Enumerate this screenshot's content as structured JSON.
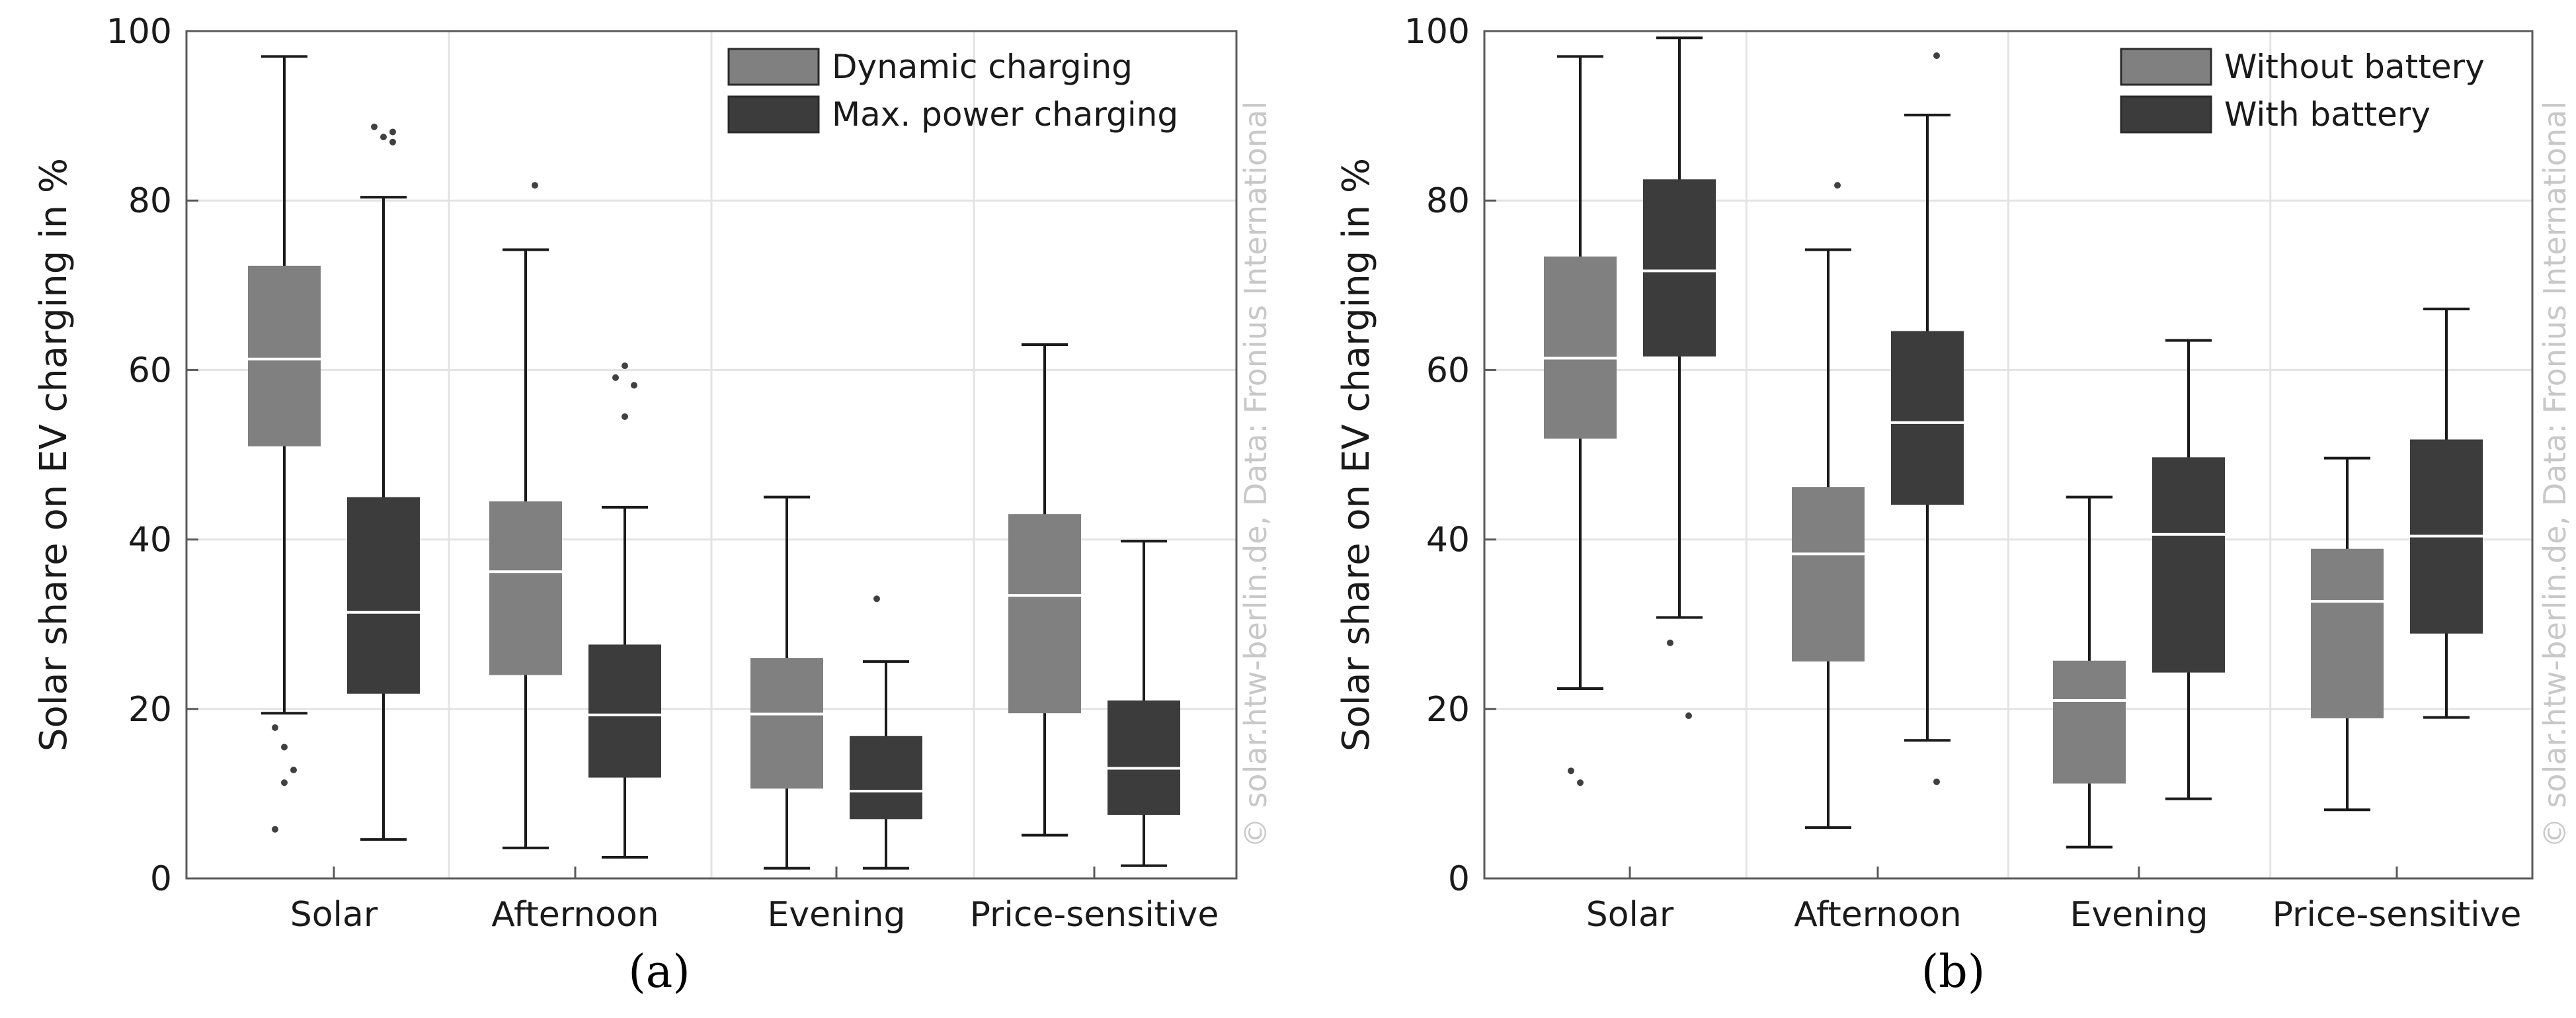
{
  "chart_data": [
    {
      "type": "box",
      "panel_label": "(a)",
      "categories": [
        "Solar",
        "Afternoon",
        "Evening",
        "Price-sensitive"
      ],
      "ylabel": "Solar share on EV charging in %",
      "ylim": [
        0,
        100
      ],
      "yticks": [
        "0",
        "20",
        "40",
        "60",
        "80",
        "100"
      ],
      "grid": true,
      "legend_position": "top-right",
      "watermark": "© solar.htw-berlin.de, Data: Fronius International",
      "series": [
        {
          "name": "Dynamic charging",
          "color": "#808080",
          "boxes": [
            {
              "whisker_low": 19.5,
              "q1": 51,
              "median": 61.3,
              "q3": 72.3,
              "whisker_high": 97,
              "outliers": [
                17.8,
                15.5,
                12.8,
                11.3,
                5.8
              ]
            },
            {
              "whisker_low": 3.6,
              "q1": 24,
              "median": 36.2,
              "q3": 44.5,
              "whisker_high": 74.2,
              "outliers": [
                81.8
              ]
            },
            {
              "whisker_low": 1.2,
              "q1": 10.6,
              "median": 19.4,
              "q3": 26,
              "whisker_high": 45,
              "outliers": []
            },
            {
              "whisker_low": 5.1,
              "q1": 19.5,
              "median": 33.4,
              "q3": 43,
              "whisker_high": 63,
              "outliers": []
            }
          ]
        },
        {
          "name": "Max. power charging",
          "color": "#3c3c3c",
          "boxes": [
            {
              "whisker_low": 4.6,
              "q1": 21.8,
              "median": 31.4,
              "q3": 45,
              "whisker_high": 80.4,
              "outliers": [
                86.9,
                87.5,
                88.1,
                88.7
              ]
            },
            {
              "whisker_low": 2.5,
              "q1": 11.9,
              "median": 19.3,
              "q3": 27.6,
              "whisker_high": 43.8,
              "outliers": [
                54.5,
                58.2,
                59.1,
                60.5
              ]
            },
            {
              "whisker_low": 1.2,
              "q1": 7,
              "median": 10.3,
              "q3": 16.8,
              "whisker_high": 25.6,
              "outliers": [
                33
              ]
            },
            {
              "whisker_low": 1.5,
              "q1": 7.5,
              "median": 13,
              "q3": 21,
              "whisker_high": 39.8,
              "outliers": []
            }
          ]
        }
      ]
    },
    {
      "type": "box",
      "panel_label": "(b)",
      "categories": [
        "Solar",
        "Afternoon",
        "Evening",
        "Price-sensitive"
      ],
      "ylabel": "Solar share on EV charging in %",
      "ylim": [
        0,
        100
      ],
      "yticks": [
        "0",
        "20",
        "40",
        "60",
        "80",
        "100"
      ],
      "grid": true,
      "legend_position": "top-right",
      "watermark": "© solar.htw-berlin.de, Data: Fronius International",
      "series": [
        {
          "name": "Without battery",
          "color": "#808080",
          "boxes": [
            {
              "whisker_low": 22.4,
              "q1": 51.9,
              "median": 61.4,
              "q3": 73.4,
              "whisker_high": 97,
              "outliers": [
                12.7,
                11.3
              ]
            },
            {
              "whisker_low": 6,
              "q1": 25.6,
              "median": 38.3,
              "q3": 46.2,
              "whisker_high": 74.2,
              "outliers": [
                81.8
              ]
            },
            {
              "whisker_low": 3.7,
              "q1": 11.2,
              "median": 21,
              "q3": 25.7,
              "whisker_high": 45,
              "outliers": []
            },
            {
              "whisker_low": 8.1,
              "q1": 18.9,
              "median": 32.7,
              "q3": 38.9,
              "whisker_high": 49.6,
              "outliers": []
            }
          ]
        },
        {
          "name": "With battery",
          "color": "#3c3c3c",
          "boxes": [
            {
              "whisker_low": 30.8,
              "q1": 61.6,
              "median": 71.7,
              "q3": 82.5,
              "whisker_high": 99.2,
              "outliers": [
                27.8,
                19.2
              ]
            },
            {
              "whisker_low": 16.3,
              "q1": 44.1,
              "median": 53.8,
              "q3": 64.6,
              "whisker_high": 90.1,
              "outliers": [
                97.1,
                11.4
              ]
            },
            {
              "whisker_low": 9.4,
              "q1": 24.3,
              "median": 40.6,
              "q3": 49.7,
              "whisker_high": 63.5,
              "outliers": []
            },
            {
              "whisker_low": 19,
              "q1": 28.9,
              "median": 40.4,
              "q3": 51.8,
              "whisker_high": 67.2,
              "outliers": []
            }
          ]
        }
      ]
    }
  ]
}
